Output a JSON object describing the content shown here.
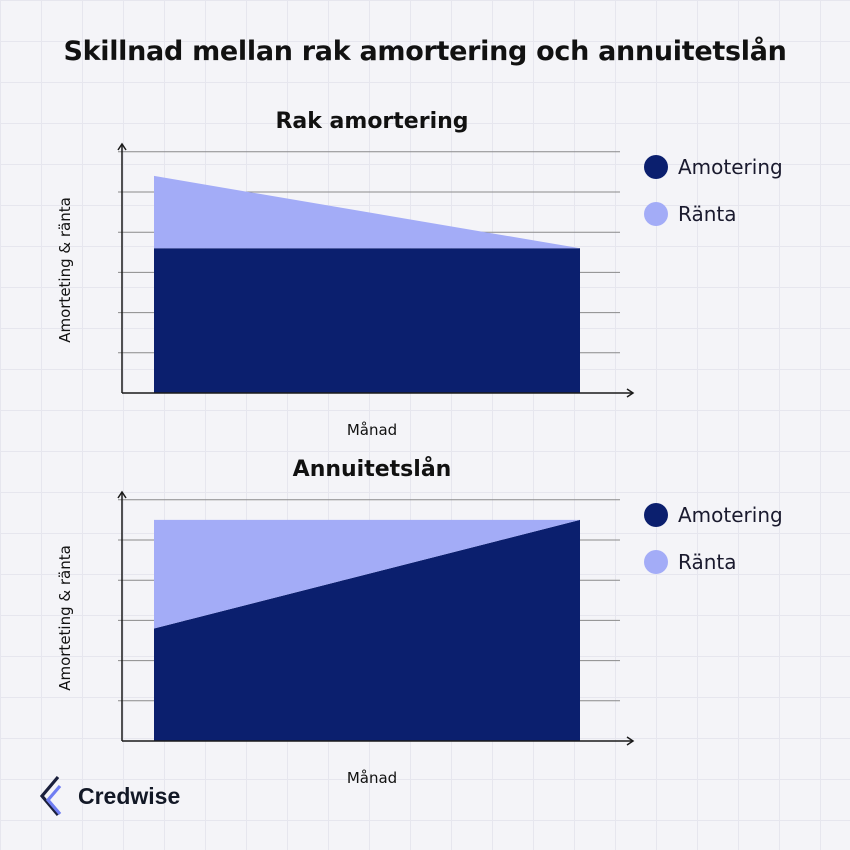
{
  "title": "Skillnad mellan rak amortering och annuitetslån",
  "brand": {
    "name": "Credwise"
  },
  "colors": {
    "amortering": "#0b1f6e",
    "ranta": "#a3acf7",
    "axis": "#1a1a1a",
    "grid": "#8a8a8a"
  },
  "chart_data": [
    {
      "type": "area",
      "title": "Rak amortering",
      "xlabel": "Månad",
      "ylabel": "Amorteting & ränta",
      "x": [
        0,
        1
      ],
      "ylim": [
        0,
        6
      ],
      "grid": true,
      "legend_position": "right",
      "series": [
        {
          "name": "Amotering",
          "values": [
            3.6,
            3.6
          ],
          "color": "#0b1f6e"
        },
        {
          "name": "Ränta",
          "values": [
            1.8,
            0.0
          ],
          "color": "#a3acf7"
        }
      ]
    },
    {
      "type": "area",
      "title": "Annuitetslån",
      "xlabel": "Månad",
      "ylabel": "Amorteting & ränta",
      "x": [
        0,
        1
      ],
      "ylim": [
        0,
        6
      ],
      "grid": true,
      "legend_position": "right",
      "series": [
        {
          "name": "Amotering",
          "values": [
            2.8,
            5.5
          ],
          "color": "#0b1f6e"
        },
        {
          "name": "Ränta",
          "values": [
            2.7,
            0.0
          ],
          "color": "#a3acf7"
        }
      ]
    }
  ]
}
